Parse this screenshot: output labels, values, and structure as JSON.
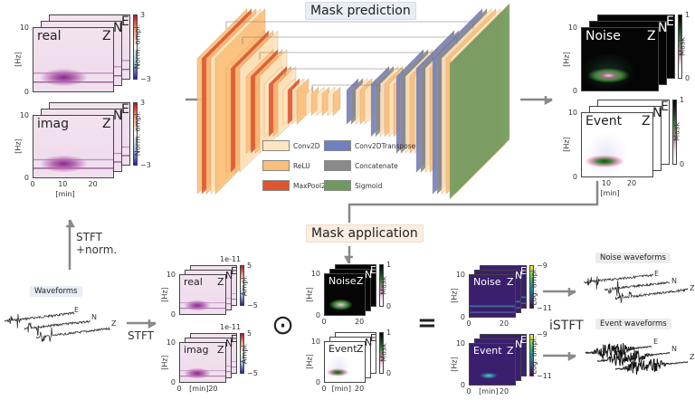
{
  "titles": {
    "mask_prediction": "Mask prediction",
    "mask_application": "Mask application"
  },
  "legend": [
    {
      "label": "Conv2D",
      "color": "#fde5c0"
    },
    {
      "label": "ReLU",
      "color": "#fbbf7a"
    },
    {
      "label": "MaxPool2D",
      "color": "#e0542e"
    },
    {
      "label": "Conv2DTranspose",
      "color": "#6f7fbf"
    },
    {
      "label": "Concatenate",
      "color": "#8a8a8a"
    },
    {
      "label": "Sigmoid",
      "color": "#6f9a5e"
    }
  ],
  "steps": {
    "stft_norm": [
      "STFT",
      "+norm."
    ],
    "stft": "STFT",
    "istft": "iSTFT"
  },
  "operators": {
    "hadamard": "⊙",
    "equals": "="
  },
  "waveforms": {
    "input_label": "Waveforms",
    "noise_label": "Noise waveforms",
    "event_label": "Event waveforms",
    "components": [
      "E",
      "N",
      "Z"
    ]
  },
  "spectrograms": {
    "components": [
      "Z",
      "N",
      "E"
    ],
    "y_label": "[Hz]",
    "x_label": "[min]",
    "input_norm": {
      "panels": [
        {
          "label": "real"
        },
        {
          "label": "imag"
        }
      ],
      "colorbar": {
        "label": "Norm. ampl.",
        "max": "3",
        "min": "−3",
        "colormap": "blue-white-red"
      },
      "y_ticks": [
        "10",
        "0"
      ],
      "x_ticks": [
        "0",
        "10",
        "20"
      ]
    },
    "predicted_masks": {
      "panels": [
        {
          "label": "Noise"
        },
        {
          "label": "Event"
        }
      ],
      "colorbar": {
        "label": "Mask",
        "max": "1",
        "min": "0",
        "colormap": "cubehelix-reversed"
      },
      "y_ticks": [
        "10",
        "0"
      ],
      "x_ticks": [
        "10",
        "20"
      ]
    },
    "input_raw": {
      "panels": [
        {
          "label": "real"
        },
        {
          "label": "imag"
        }
      ],
      "colorbar": {
        "label": "Ampl.",
        "max": "5",
        "min": "−5",
        "scale": "1e-11",
        "colormap": "blue-white-red"
      },
      "y_ticks": [
        "10",
        "0"
      ],
      "x_ticks": [
        "0",
        "20"
      ]
    },
    "applied_masks": {
      "panels": [
        {
          "label": "Noise"
        },
        {
          "label": "Event"
        }
      ],
      "colorbar": {
        "label": "Mask",
        "max": "1",
        "min": "0",
        "colormap": "cubehelix-reversed"
      },
      "y_ticks": [
        "10",
        "0"
      ],
      "x_ticks": [
        "0",
        "20"
      ]
    },
    "output": {
      "panels": [
        {
          "label": "Noise"
        },
        {
          "label": "Event"
        }
      ],
      "colorbar": {
        "label": "Log. ampl.",
        "max": "−9",
        "min": "−11",
        "colormap": "viridis"
      },
      "y_ticks": [
        "10",
        "0"
      ],
      "x_ticks": [
        "0",
        "20"
      ]
    }
  }
}
